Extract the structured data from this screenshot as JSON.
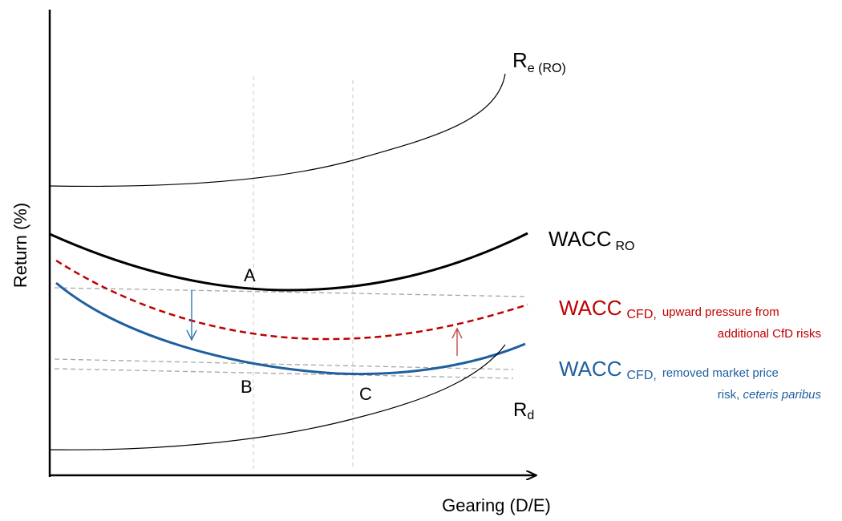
{
  "axes": {
    "y_label": "Return (%)",
    "x_label": "Gearing (D/E)"
  },
  "curves": {
    "re": {
      "main": "R",
      "sub": "e (RO)"
    },
    "wacc_ro": {
      "main": "WACC",
      "sub": "RO"
    },
    "wacc_cfd_red": {
      "main": "WACC",
      "sub": "CFD,",
      "note_line1": "upward pressure from",
      "note_line2": "additional CfD risks"
    },
    "wacc_cfd_blue": {
      "main": "WACC",
      "sub": "CFD,",
      "note_line1": "removed  market price",
      "note_line2a": "risk, ",
      "note_line2b": "ceteris paribus"
    },
    "rd": {
      "main": "R",
      "sub": "d"
    }
  },
  "points": {
    "a": "A",
    "b": "B",
    "c": "C"
  },
  "colors": {
    "black": "#000000",
    "red": "#c00000",
    "blue": "#1f5f9f",
    "dashed_grey": "#a6a6a6",
    "pressure_arrow_red": "#c0504d",
    "pressure_arrow_blue": "#2e75b6"
  }
}
